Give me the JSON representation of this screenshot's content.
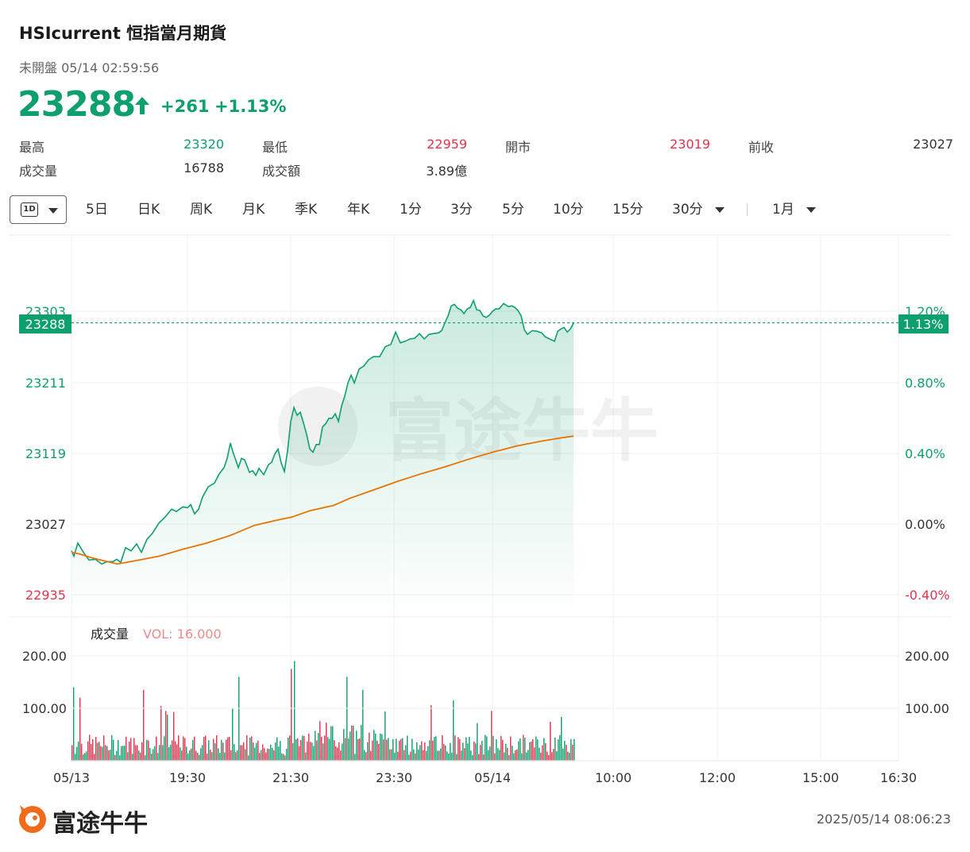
{
  "header": {
    "title": "HSIcurrent  恒指當月期貨",
    "status": "未開盤 05/14 02:59:56",
    "price": "23288",
    "change": "+261",
    "change_pct": "+1.13%"
  },
  "stats": {
    "high_label": "最高",
    "high": "23320",
    "low_label": "最低",
    "low": "22959",
    "open_label": "開市",
    "open": "23019",
    "prev_label": "前收",
    "prev": "23027",
    "vol_label": "成交量",
    "vol": "16788",
    "amount_label": "成交額",
    "amount": "3.89億"
  },
  "tabs": [
    {
      "label": "1D",
      "active": true
    },
    {
      "label": "5日"
    },
    {
      "label": "日K"
    },
    {
      "label": "周K"
    },
    {
      "label": "月K"
    },
    {
      "label": "季K"
    },
    {
      "label": "年K"
    },
    {
      "label": "1分"
    },
    {
      "label": "3分"
    },
    {
      "label": "5分"
    },
    {
      "label": "10分"
    },
    {
      "label": "15分"
    },
    {
      "label": "30分"
    },
    {
      "label": "1月"
    }
  ],
  "colors": {
    "up": "#0d9f6e",
    "down": "#e4334a",
    "avg": "#e87400",
    "vol_label": "#f08a8a"
  },
  "chart_data": [
    {
      "type": "line",
      "title": "",
      "y_left_ticks": [
        "23303",
        "23211",
        "23119",
        "23027",
        "22935"
      ],
      "y_right_ticks": [
        "1.20%",
        "0.80%",
        "0.40%",
        "0.00%",
        "-0.40%"
      ],
      "ylim": [
        22935,
        23303
      ],
      "x_ticks": [
        "05/13",
        "19:30",
        "21:30",
        "23:30",
        "05/14",
        "10:00",
        "12:00",
        "15:00",
        "16:30"
      ],
      "current_price_label": "23288",
      "current_pct_label": "1.13%",
      "prev_close": 23027,
      "series": [
        {
          "role": "price",
          "points": [
            [
              0,
              22992
            ],
            [
              3,
              22985
            ],
            [
              8,
              23002
            ],
            [
              15,
              22990
            ],
            [
              22,
              22980
            ],
            [
              30,
              22981
            ],
            [
              38,
              22975
            ],
            [
              45,
              22978
            ],
            [
              52,
              22978
            ],
            [
              57,
              22981
            ],
            [
              62,
              22977
            ],
            [
              68,
              22996
            ],
            [
              75,
              22992
            ],
            [
              82,
              23001
            ],
            [
              88,
              22990
            ],
            [
              95,
              23007
            ],
            [
              102,
              23015
            ],
            [
              110,
              23028
            ],
            [
              118,
              23036
            ],
            [
              126,
              23046
            ],
            [
              132,
              23043
            ],
            [
              140,
              23049
            ],
            [
              146,
              23048
            ],
            [
              150,
              23052
            ],
            [
              155,
              23040
            ],
            [
              160,
              23046
            ],
            [
              165,
              23062
            ],
            [
              172,
              23075
            ],
            [
              180,
              23080
            ],
            [
              186,
              23092
            ],
            [
              192,
              23100
            ],
            [
              196,
              23112
            ],
            [
              200,
              23132
            ],
            [
              203,
              23121
            ],
            [
              206,
              23112
            ],
            [
              210,
              23100
            ],
            [
              214,
              23112
            ],
            [
              218,
              23110
            ],
            [
              224,
              23094
            ],
            [
              228,
              23096
            ],
            [
              232,
              23090
            ],
            [
              236,
              23099
            ],
            [
              242,
              23091
            ],
            [
              248,
              23104
            ],
            [
              252,
              23107
            ],
            [
              256,
              23118
            ],
            [
              260,
              23124
            ],
            [
              264,
              23106
            ],
            [
              268,
              23095
            ],
            [
              272,
              23122
            ],
            [
              276,
              23160
            ],
            [
              280,
              23178
            ],
            [
              284,
              23168
            ],
            [
              288,
              23172
            ],
            [
              292,
              23158
            ],
            [
              296,
              23143
            ],
            [
              300,
              23124
            ],
            [
              304,
              23120
            ],
            [
              308,
              23130
            ],
            [
              312,
              23130
            ],
            [
              316,
              23153
            ],
            [
              320,
              23157
            ],
            [
              324,
              23164
            ],
            [
              328,
              23164
            ],
            [
              332,
              23170
            ],
            [
              336,
              23160
            ],
            [
              340,
              23180
            ],
            [
              344,
              23193
            ],
            [
              348,
              23210
            ],
            [
              352,
              23220
            ],
            [
              356,
              23210
            ],
            [
              362,
              23228
            ],
            [
              368,
              23232
            ],
            [
              374,
              23240
            ],
            [
              380,
              23244
            ],
            [
              388,
              23244
            ],
            [
              395,
              23257
            ],
            [
              402,
              23260
            ],
            [
              408,
              23276
            ],
            [
              414,
              23262
            ],
            [
              420,
              23264
            ],
            [
              426,
              23267
            ],
            [
              432,
              23268
            ],
            [
              438,
              23274
            ],
            [
              444,
              23267
            ],
            [
              450,
              23273
            ],
            [
              456,
              23274
            ],
            [
              462,
              23275
            ],
            [
              466,
              23278
            ],
            [
              470,
              23288
            ],
            [
              474,
              23297
            ],
            [
              478,
              23310
            ],
            [
              482,
              23312
            ],
            [
              486,
              23307
            ],
            [
              490,
              23305
            ],
            [
              494,
              23300
            ],
            [
              498,
              23306
            ],
            [
              502,
              23308
            ],
            [
              506,
              23317
            ],
            [
              510,
              23305
            ],
            [
              514,
              23304
            ],
            [
              518,
              23297
            ],
            [
              522,
              23295
            ],
            [
              526,
              23298
            ],
            [
              530,
              23303
            ],
            [
              534,
              23306
            ],
            [
              538,
              23306
            ],
            [
              544,
              23313
            ],
            [
              550,
              23309
            ],
            [
              554,
              23310
            ],
            [
              558,
              23308
            ],
            [
              562,
              23304
            ],
            [
              566,
              23297
            ],
            [
              570,
              23279
            ],
            [
              574,
              23273
            ],
            [
              580,
              23278
            ],
            [
              586,
              23277
            ],
            [
              592,
              23275
            ],
            [
              596,
              23270
            ],
            [
              600,
              23268
            ],
            [
              604,
              23266
            ],
            [
              608,
              23264
            ],
            [
              612,
              23277
            ],
            [
              616,
              23280
            ],
            [
              620,
              23282
            ],
            [
              624,
              23276
            ],
            [
              628,
              23280
            ],
            [
              632,
              23288
            ]
          ]
        },
        {
          "role": "average",
          "points": [
            [
              0,
              22990
            ],
            [
              10,
              22988
            ],
            [
              25,
              22983
            ],
            [
              45,
              22978
            ],
            [
              58,
              22975
            ],
            [
              80,
              22979
            ],
            [
              110,
              22985
            ],
            [
              140,
              22994
            ],
            [
              170,
              23002
            ],
            [
              200,
              23012
            ],
            [
              230,
              23025
            ],
            [
              255,
              23031
            ],
            [
              278,
              23036
            ],
            [
              300,
              23044
            ],
            [
              330,
              23051
            ],
            [
              350,
              23060
            ],
            [
              380,
              23071
            ],
            [
              410,
              23082
            ],
            [
              440,
              23092
            ],
            [
              470,
              23101
            ],
            [
              500,
              23111
            ],
            [
              530,
              23120
            ],
            [
              560,
              23128
            ],
            [
              590,
              23134
            ],
            [
              612,
              23138
            ],
            [
              632,
              23141
            ]
          ]
        }
      ]
    },
    {
      "type": "bar",
      "title": "成交量",
      "vol_readout": "VOL: 16.000",
      "y_left_ticks": [
        "200.00",
        "100.00"
      ],
      "y_right_ticks": [
        "200.00",
        "100.00"
      ],
      "ylim": [
        0,
        200
      ],
      "note": "Per-minute volume bars, colored green/red by direction"
    }
  ],
  "footer": {
    "brand": "富途牛牛",
    "timestamp": "2025/05/14 08:06:23"
  },
  "watermark": "富途牛牛"
}
